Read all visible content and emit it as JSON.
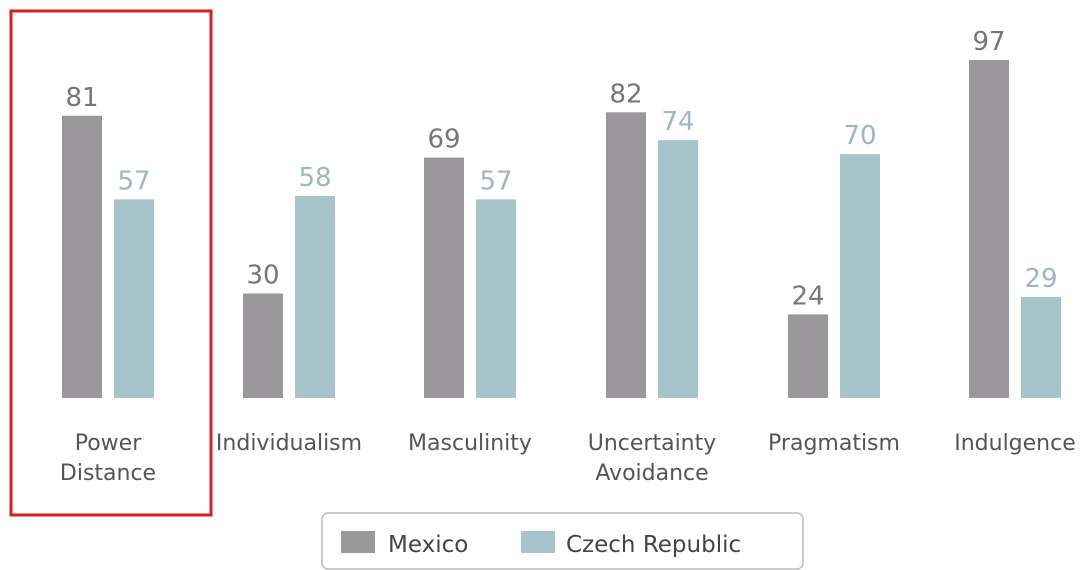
{
  "colors": {
    "Mexico": "#9a989b",
    "Czech Republic": "#a7c4cb",
    "label_mexico": "#777777",
    "label_czech": "#9ab8c0",
    "highlight": "#d42020"
  },
  "chart_data": {
    "type": "bar",
    "title": "",
    "xlabel": "",
    "ylabel": "",
    "ylim": [
      0,
      100
    ],
    "grid": false,
    "legend_position": "bottom",
    "categories": [
      [
        "Power",
        "Distance"
      ],
      [
        "Individualism"
      ],
      [
        "Masculinity"
      ],
      [
        "Uncertainty",
        "Avoidance"
      ],
      [
        "Pragmatism"
      ],
      [
        "Indulgence"
      ]
    ],
    "series": [
      {
        "name": "Mexico",
        "values": [
          81,
          30,
          69,
          82,
          24,
          97
        ]
      },
      {
        "name": "Czech Republic",
        "values": [
          57,
          58,
          57,
          74,
          70,
          29
        ]
      }
    ],
    "highlighted_category": "Power Distance"
  },
  "legend": {
    "items": [
      "Mexico",
      "Czech Republic"
    ]
  }
}
